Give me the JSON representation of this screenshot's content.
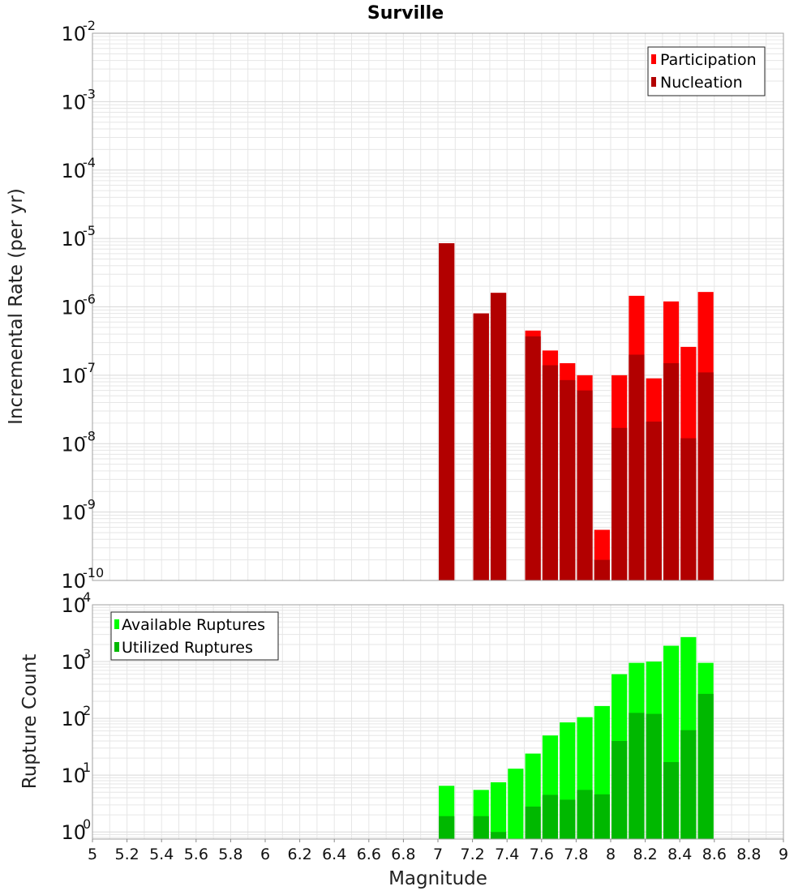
{
  "title": "Surville",
  "colors": {
    "participation": "#ff0000",
    "nucleation": "#b20000",
    "available": "#00ff00",
    "utilized": "#00b800",
    "grid": "#e6e6e6",
    "frame": "#a0a0a0"
  },
  "chart_data": [
    {
      "type": "bar",
      "panel": "top",
      "scale": "log",
      "ylim": [
        1e-10,
        0.01
      ],
      "xlim": [
        5,
        9
      ],
      "ylabel": "Incremental Rate (per yr)",
      "xlabel": "",
      "grid": true,
      "legend_position": "top-right",
      "y_ticks": [
        {
          "base": "10",
          "exp": "-2"
        },
        {
          "base": "10",
          "exp": "-3"
        },
        {
          "base": "10",
          "exp": "-4"
        },
        {
          "base": "10",
          "exp": "-5"
        },
        {
          "base": "10",
          "exp": "-6"
        },
        {
          "base": "10",
          "exp": "-7"
        },
        {
          "base": "10",
          "exp": "-8"
        },
        {
          "base": "10",
          "exp": "-9"
        },
        {
          "base": "10",
          "exp": "-10"
        }
      ],
      "series": [
        {
          "name": "Participation",
          "x": [
            7.05,
            7.25,
            7.35,
            7.55,
            7.65,
            7.75,
            7.85,
            7.95,
            8.05,
            8.15,
            8.25,
            8.35,
            8.45,
            8.55
          ],
          "values": [
            8.5e-06,
            8e-07,
            1.6e-06,
            4.5e-07,
            2.3e-07,
            1.5e-07,
            1e-07,
            5.5e-10,
            1e-07,
            1.45e-06,
            9e-08,
            1.2e-06,
            2.6e-07,
            1.65e-06
          ]
        },
        {
          "name": "Nucleation",
          "x": [
            7.05,
            7.25,
            7.35,
            7.55,
            7.65,
            7.75,
            7.85,
            7.95,
            8.05,
            8.15,
            8.25,
            8.35,
            8.45,
            8.55
          ],
          "values": [
            8.5e-06,
            8e-07,
            1.6e-06,
            3.7e-07,
            1.4e-07,
            8.5e-08,
            6e-08,
            2e-10,
            1.7e-08,
            2e-07,
            2.1e-08,
            1.5e-07,
            1.2e-08,
            1.1e-07
          ]
        }
      ]
    },
    {
      "type": "bar",
      "panel": "bottom",
      "scale": "log",
      "ylim": [
        0.75,
        10000
      ],
      "xlim": [
        5,
        9
      ],
      "ylabel": "Rupture Count",
      "xlabel": "Magnitude",
      "grid": true,
      "legend_position": "top-left",
      "y_ticks": [
        {
          "base": "10",
          "exp": "4"
        },
        {
          "base": "10",
          "exp": "3"
        },
        {
          "base": "10",
          "exp": "2"
        },
        {
          "base": "10",
          "exp": "1"
        },
        {
          "base": "10",
          "exp": "0"
        }
      ],
      "x_ticks": [
        "5",
        "5.2",
        "5.4",
        "5.6",
        "5.8",
        "6",
        "6.2",
        "6.4",
        "6.6",
        "6.8",
        "7",
        "7.2",
        "7.4",
        "7.6",
        "7.8",
        "8",
        "8.2",
        "8.4",
        "8.6",
        "8.8",
        "9"
      ],
      "series": [
        {
          "name": "Available Ruptures",
          "x": [
            7.05,
            7.25,
            7.35,
            7.45,
            7.55,
            7.65,
            7.75,
            7.85,
            7.95,
            8.05,
            8.15,
            8.25,
            8.35,
            8.45,
            8.55
          ],
          "values": [
            6.5,
            5.5,
            7.5,
            13,
            24,
            50,
            85,
            105,
            165,
            600,
            950,
            1000,
            1900,
            2700,
            950
          ]
        },
        {
          "name": "Utilized Ruptures",
          "x": [
            7.05,
            7.25,
            7.35,
            7.45,
            7.55,
            7.65,
            7.75,
            7.85,
            7.95,
            8.05,
            8.15,
            8.25,
            8.35,
            8.45,
            8.55
          ],
          "values": [
            1.9,
            1.9,
            1,
            0,
            2.8,
            4.5,
            3.7,
            5.5,
            4.6,
            40,
            125,
            120,
            17,
            62,
            270
          ]
        }
      ]
    }
  ]
}
